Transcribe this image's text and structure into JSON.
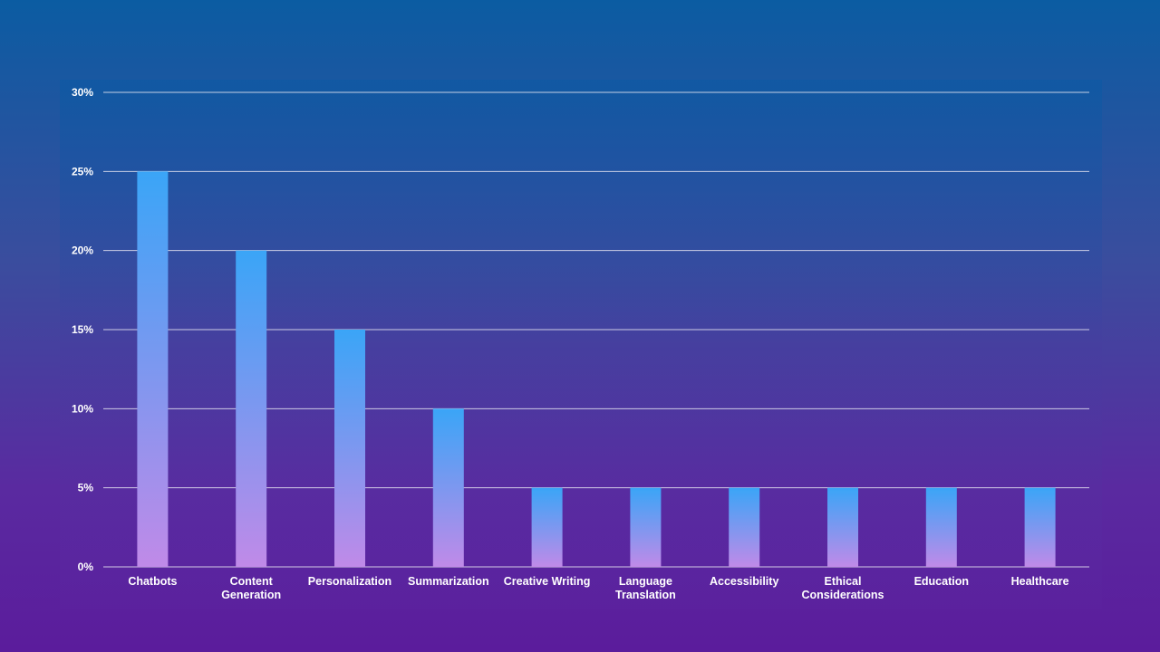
{
  "chart_data": {
    "type": "bar",
    "categories": [
      "Chatbots",
      "Content Generation",
      "Personalization",
      "Summarization",
      "Creative Writing",
      "Language Translation",
      "Accessibility",
      "Ethical Considerations",
      "Education",
      "Healthcare"
    ],
    "values": [
      25,
      20,
      15,
      10,
      5,
      5,
      5,
      5,
      5,
      5
    ],
    "ylim": [
      0,
      30
    ],
    "yticks": [
      0,
      5,
      10,
      15,
      20,
      25,
      30
    ],
    "ytick_labels": [
      "0%",
      "5%",
      "10%",
      "15%",
      "20%",
      "25%",
      "30%"
    ],
    "grid": true,
    "title": "",
    "xlabel": "",
    "ylabel": "",
    "colors": {
      "bar_top": "#3aa5f7",
      "bar_bottom": "#c08ae8",
      "gridline": "#e6e6f2",
      "text": "#ffffff"
    }
  }
}
